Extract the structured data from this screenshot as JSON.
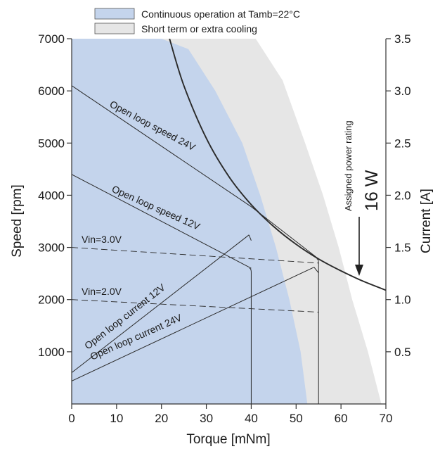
{
  "chart_data": {
    "type": "line",
    "xlabel": "Torque [mNm]",
    "ylabel": "Speed [rpm]",
    "y2label": "Current [A]",
    "xlim": [
      0,
      70
    ],
    "ylim": [
      0,
      7000
    ],
    "y2lim": [
      0,
      3.5
    ],
    "x_ticks": [
      "0",
      "10",
      "20",
      "30",
      "40",
      "50",
      "60",
      "70"
    ],
    "y_ticks": [
      "1000",
      "2000",
      "3000",
      "4000",
      "5000",
      "6000",
      "7000"
    ],
    "y2_ticks": [
      "0.5",
      "1.0",
      "1.5",
      "2.0",
      "2.5",
      "3.0",
      "3.5"
    ],
    "grid": false,
    "legend_position": "top-center",
    "colors": {
      "continuous_region": "#c4d4ec",
      "short_term_region": "#e6e6e6",
      "line": "#2a2a2a"
    },
    "regions": [
      {
        "name": "Continuous operation at Tamb=22°C",
        "color": "#c4d4ec",
        "boundary": [
          [
            0,
            7000
          ],
          [
            20,
            7000
          ],
          [
            26,
            6800
          ],
          [
            32,
            6000
          ],
          [
            38,
            5000
          ],
          [
            42,
            4000
          ],
          [
            45.5,
            3000
          ],
          [
            48.5,
            2000
          ],
          [
            51,
            1000
          ],
          [
            52.5,
            0
          ]
        ]
      },
      {
        "name": "Short term or extra cooling",
        "color": "#e6e6e6",
        "boundary": [
          [
            0,
            7000
          ],
          [
            41,
            7000
          ],
          [
            47,
            6200
          ],
          [
            52,
            5000
          ],
          [
            56,
            4000
          ],
          [
            59.5,
            3000
          ],
          [
            62.5,
            2000
          ],
          [
            66,
            1000
          ],
          [
            69,
            0
          ]
        ]
      }
    ],
    "series": [
      {
        "label": "Open loop speed  24V",
        "axis": "left",
        "style": "solid",
        "x": [
          0,
          40,
          55
        ],
        "y": [
          6100,
          3780,
          2780
        ]
      },
      {
        "label": "Open loop speed  12V",
        "axis": "left",
        "style": "solid",
        "x": [
          0,
          40
        ],
        "y": [
          4400,
          2600
        ]
      },
      {
        "label": "Open loop current  12V",
        "axis": "right",
        "style": "solid",
        "x": [
          0,
          39.5
        ],
        "y": [
          0.3,
          1.62
        ]
      },
      {
        "label": "Open loop current  24V",
        "axis": "right",
        "style": "solid",
        "x": [
          0,
          54
        ],
        "y": [
          0.22,
          1.31
        ]
      },
      {
        "label": "Vin=3.0V",
        "axis": "left",
        "style": "dashed",
        "x": [
          0,
          55
        ],
        "y": [
          3000,
          2700
        ]
      },
      {
        "label": "Vin=2.0V",
        "axis": "left",
        "style": "dashed",
        "x": [
          0,
          55
        ],
        "y": [
          2000,
          1760
        ]
      },
      {
        "label": "16 W",
        "axis": "left",
        "style": "solid",
        "x": [
          21.8,
          25,
          30,
          35,
          40,
          45,
          50,
          55,
          60,
          65,
          70
        ],
        "y": [
          7000,
          6100,
          5090,
          4360,
          3820,
          3400,
          3060,
          2780,
          2550,
          2350,
          2180
        ]
      }
    ],
    "annotations": {
      "power_rating_caption": "Assigned power rating",
      "power_rating_value": "16 W"
    }
  }
}
